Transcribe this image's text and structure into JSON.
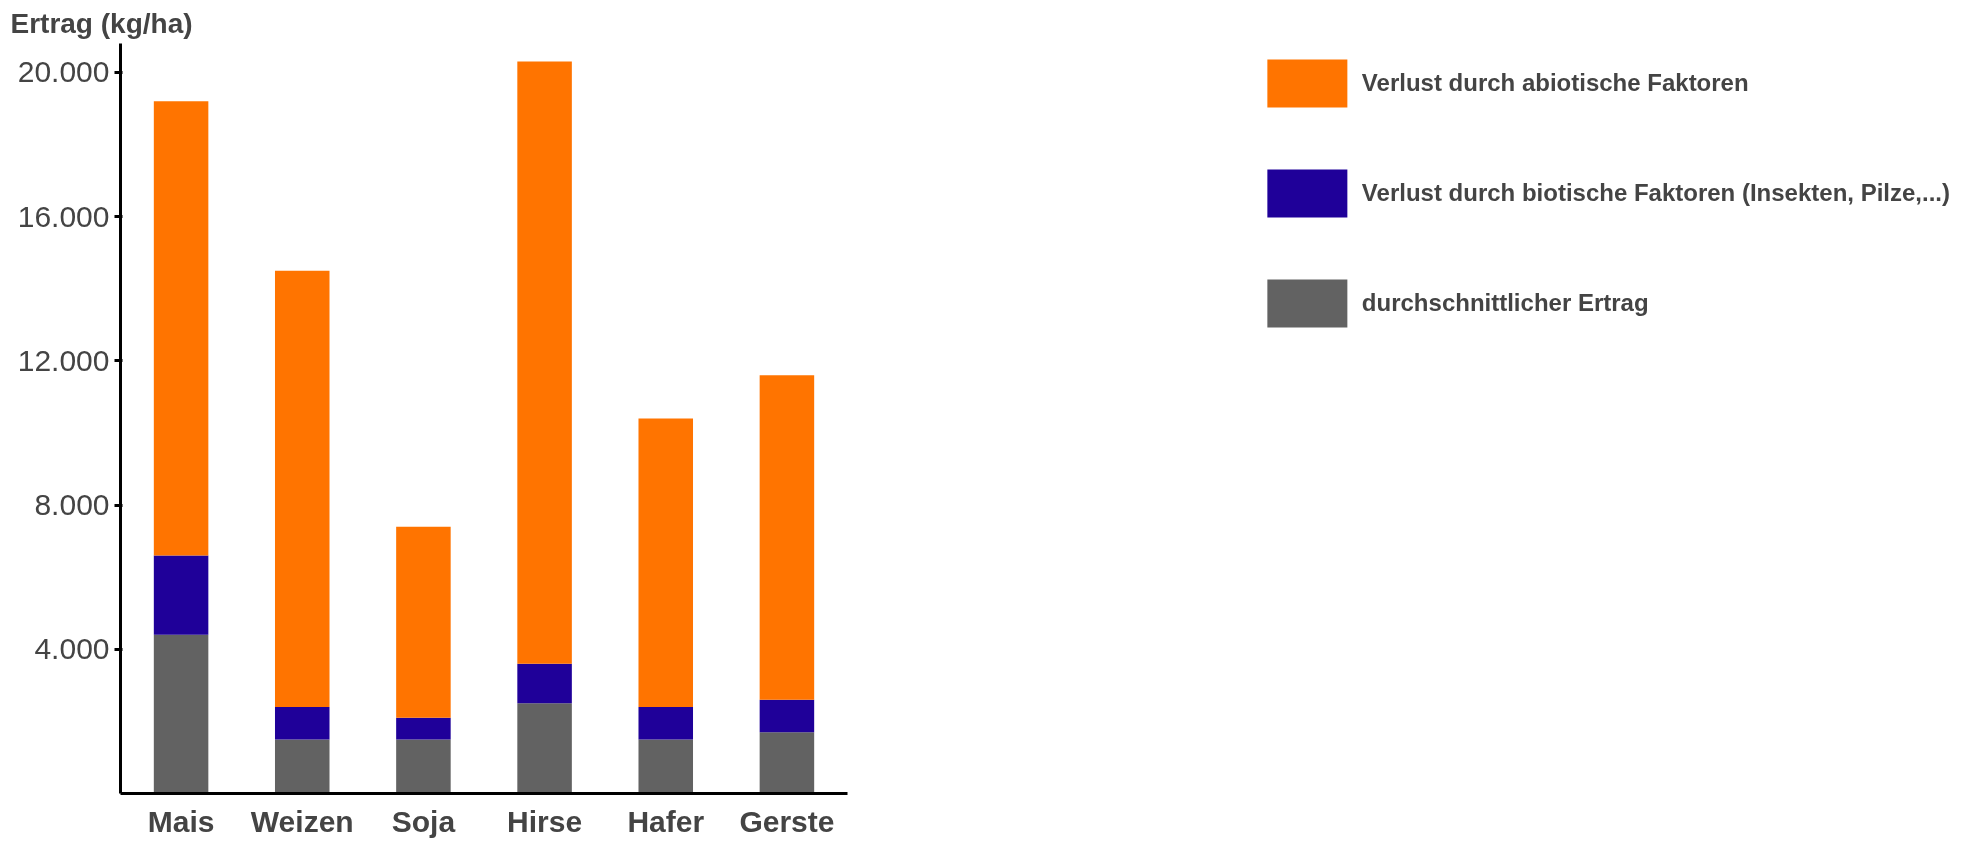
{
  "chart_data": {
    "type": "bar",
    "stacked": true,
    "ylabel": "Ertrag (kg/ha)",
    "categories": [
      "Mais",
      "Weizen",
      "Soja",
      "Hirse",
      "Hafer",
      "Gerste"
    ],
    "series": [
      {
        "name": "durchschnittlicher Ertrag",
        "color": "#626262",
        "values": [
          4400,
          1500,
          1500,
          2500,
          1500,
          1700
        ]
      },
      {
        "name": "Verlust durch biotische Faktoren (Insekten, Pilze,...)",
        "color": "#1f0099",
        "values": [
          2200,
          900,
          600,
          1100,
          900,
          900
        ]
      },
      {
        "name": "Verlust durch abiotische Faktoren",
        "color": "#ff7400",
        "values": [
          12600,
          12100,
          5300,
          16700,
          8000,
          9000
        ]
      }
    ],
    "ylim": [
      0,
      20800
    ],
    "yticks": [
      {
        "value": 4000,
        "label": "4.000"
      },
      {
        "value": 8000,
        "label": "8.000"
      },
      {
        "value": 12000,
        "label": "12.000"
      },
      {
        "value": 16000,
        "label": "16.000"
      },
      {
        "value": 20000,
        "label": "20.000"
      }
    ],
    "grid": false,
    "legend": "right"
  }
}
